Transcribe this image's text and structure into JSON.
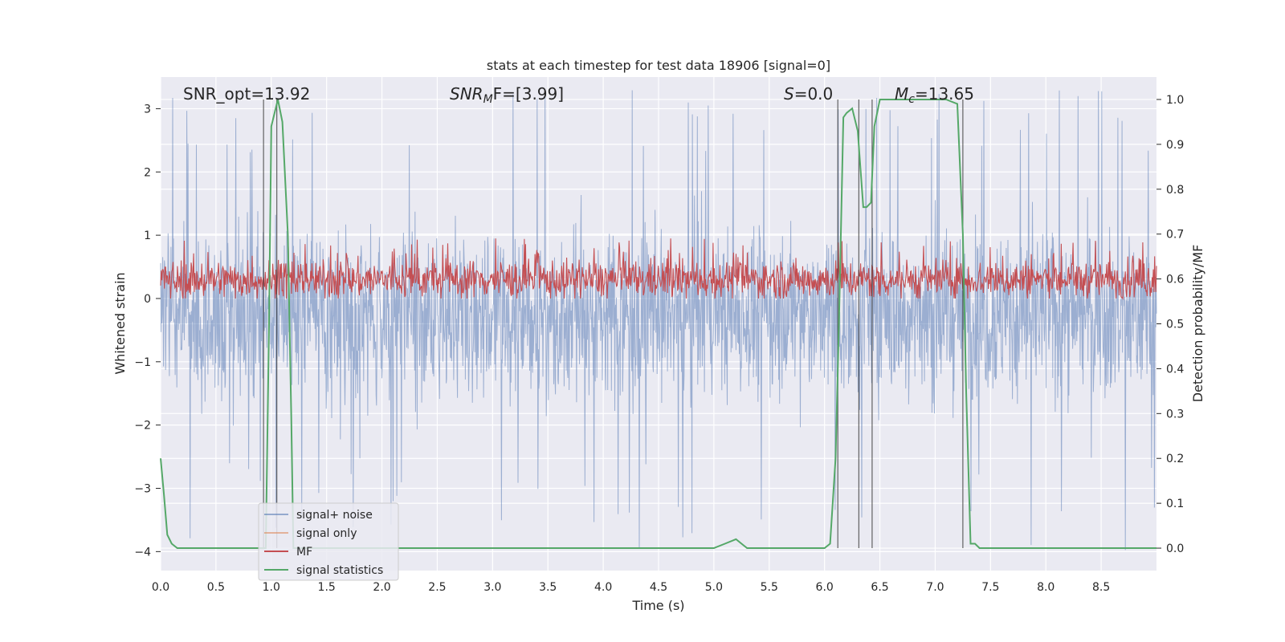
{
  "chart_data": {
    "type": "line",
    "title": "stats at each timestep for test data 18906 [signal=0]",
    "xlabel": "Time (s)",
    "ylabel": "Whitened strain",
    "ylabel_right": "Detection probability/MF",
    "xlim": [
      0.0,
      9.0
    ],
    "ylim": [
      -4.3,
      3.5
    ],
    "ylim_right": [
      -0.05,
      1.05
    ],
    "x_ticks": [
      "0.0",
      "0.5",
      "1.0",
      "1.5",
      "2.0",
      "2.5",
      "3.0",
      "3.5",
      "4.0",
      "4.5",
      "5.0",
      "5.5",
      "6.0",
      "6.5",
      "7.0",
      "7.5",
      "8.0",
      "8.5"
    ],
    "y_ticks": [
      "3",
      "2",
      "1",
      "0",
      "−1",
      "−2",
      "−3",
      "−4"
    ],
    "y_ticks_right": [
      "1.0",
      "0.9",
      "0.8",
      "0.7",
      "0.6",
      "0.5",
      "0.4",
      "0.3",
      "0.2",
      "0.1",
      "0.0"
    ],
    "grid": true,
    "legend": {
      "placement": "lower-left",
      "entries": [
        {
          "label": "signal+ noise",
          "color": "#4c72b0"
        },
        {
          "label": "signal only",
          "color": "#dd8452"
        },
        {
          "label": "MF",
          "color": "#c44e52"
        },
        {
          "label": "signal statistics",
          "color": "#55a868"
        }
      ]
    },
    "annotations": {
      "snr_opt": "SNR_opt=13.92",
      "snr_mf_main": "SNR",
      "snr_mf_sub": "M",
      "snr_mf_rest": "F=[3.99]",
      "s_main": "S",
      "s_rest": "=0.0",
      "mc_main": "M",
      "mc_sub": "c",
      "mc_rest": "=13.65"
    },
    "series": [
      {
        "name": "signal+ noise",
        "color": "#4c72b0",
        "description_of_values": "noise band",
        "envelope": {
          "upper": 1.2,
          "lower": -1.7,
          "peak_max": 3.3,
          "peak_min": -4.0
        }
      },
      {
        "name": "MF",
        "color": "#c44e52",
        "envelope": {
          "upper": 0.75,
          "lower": 0.0,
          "peak_max": 1.0
        }
      },
      {
        "name": "signal statistics",
        "color": "#55a868",
        "x": [
          0.0,
          0.03,
          0.06,
          0.1,
          0.15,
          0.2,
          0.3,
          0.5,
          0.8,
          0.9,
          0.95,
          0.98,
          1.0,
          1.03,
          1.06,
          1.1,
          1.15,
          1.18,
          1.2,
          1.25,
          1.5,
          2.0,
          3.0,
          4.0,
          5.0,
          5.1,
          5.2,
          5.25,
          5.3,
          5.4,
          5.6,
          6.0,
          6.05,
          6.1,
          6.13,
          6.17,
          6.2,
          6.25,
          6.3,
          6.35,
          6.38,
          6.42,
          6.45,
          6.5,
          6.55,
          6.65,
          6.9,
          7.1,
          7.2,
          7.25,
          7.28,
          7.32,
          7.36,
          7.4,
          7.45,
          7.6,
          8.0,
          9.0
        ],
        "y": [
          0.2,
          0.12,
          0.03,
          0.01,
          0.0,
          0.0,
          0.0,
          0.0,
          0.0,
          0.0,
          0.0,
          0.5,
          0.94,
          0.97,
          1.0,
          0.95,
          0.7,
          0.3,
          0.0,
          0.0,
          0.0,
          0.0,
          0.0,
          0.0,
          0.0,
          0.01,
          0.02,
          0.01,
          0.0,
          0.0,
          0.0,
          0.0,
          0.01,
          0.2,
          0.5,
          0.96,
          0.97,
          0.98,
          0.93,
          0.76,
          0.76,
          0.77,
          0.94,
          1.0,
          1.0,
          1.0,
          1.0,
          1.0,
          0.99,
          0.7,
          0.35,
          0.01,
          0.01,
          0.0,
          0.0,
          0.0,
          0.0,
          0.0
        ]
      }
    ],
    "vertical_lines_x": [
      0.93,
      1.05,
      6.12,
      6.31,
      6.43,
      7.25
    ]
  }
}
